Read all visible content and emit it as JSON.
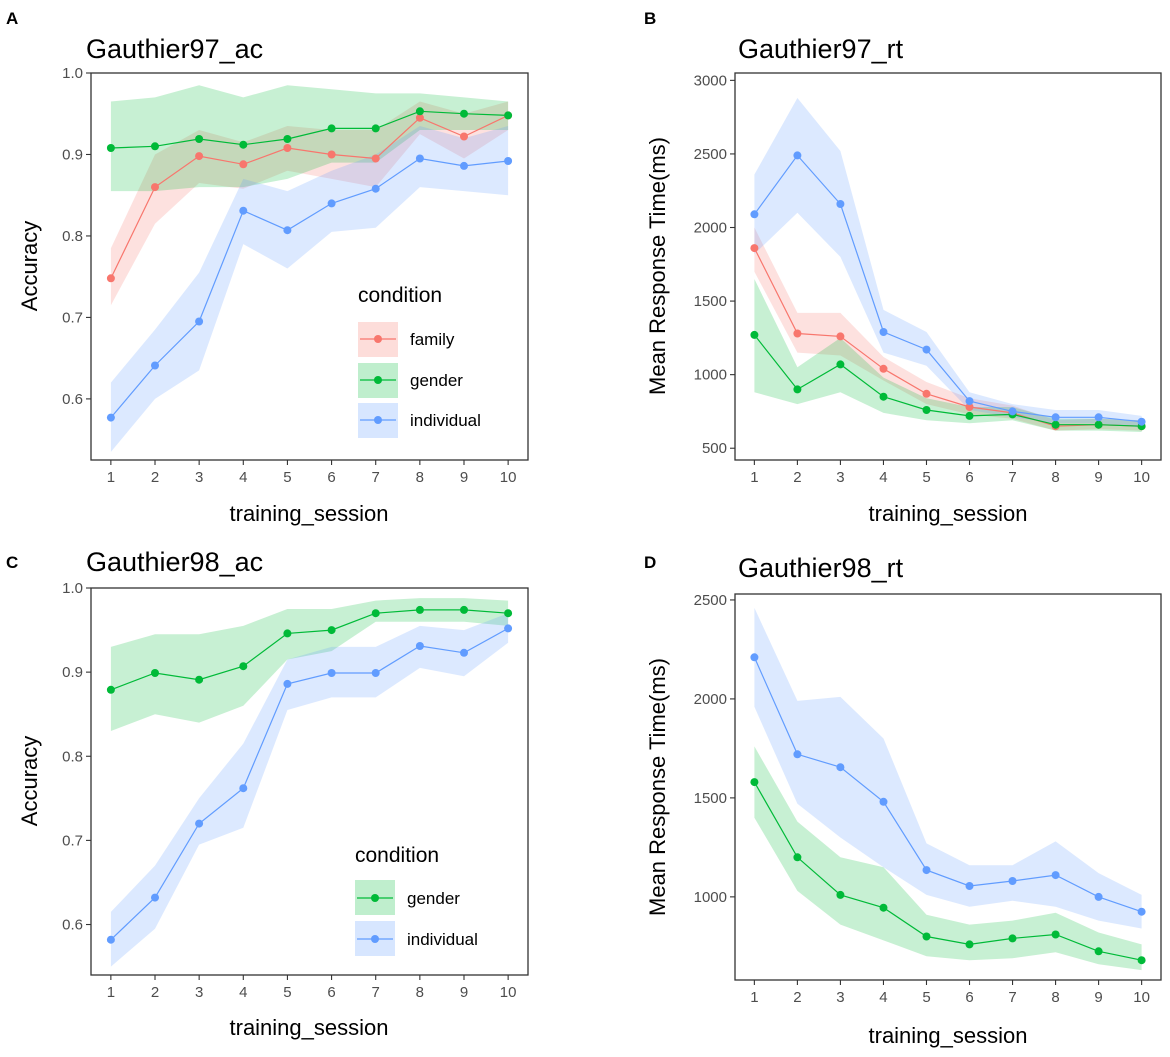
{
  "colors": {
    "family": "#F8766D",
    "gender": "#00BA38",
    "individual": "#619CFF",
    "family_band": "#F8766D",
    "gender_band": "#00BA38",
    "individual_band": "#619CFF"
  },
  "chart_data": [
    {
      "panel": "A",
      "type": "line",
      "title": "Gauthier97_ac",
      "xlabel": "training_session",
      "ylabel": "Accuracy",
      "x": [
        1,
        2,
        3,
        4,
        5,
        6,
        7,
        8,
        9,
        10
      ],
      "xticks": [
        "1",
        "2",
        "3",
        "4",
        "5",
        "6",
        "7",
        "8",
        "9",
        "10"
      ],
      "xlim": [
        0.55,
        10.45
      ],
      "ylim": [
        0.525,
        1.0
      ],
      "yticks": [
        0.6,
        0.7,
        0.8,
        0.9,
        1.0
      ],
      "ytick_labels": [
        "0.6",
        "0.7",
        "0.8",
        "0.9",
        "1.0"
      ],
      "legend": {
        "title": "condition",
        "position": "bottom-right"
      },
      "series": [
        {
          "name": "family",
          "key": "family",
          "values": [
            0.748,
            0.86,
            0.898,
            0.888,
            0.908,
            0.9,
            0.895,
            0.945,
            0.922,
            0.948
          ],
          "lower": [
            0.715,
            0.815,
            0.865,
            0.858,
            0.88,
            0.87,
            0.86,
            0.925,
            0.895,
            0.93
          ],
          "upper": [
            0.785,
            0.9,
            0.93,
            0.915,
            0.935,
            0.93,
            0.93,
            0.965,
            0.95,
            0.965
          ]
        },
        {
          "name": "gender",
          "key": "gender",
          "values": [
            0.908,
            0.91,
            0.919,
            0.912,
            0.919,
            0.932,
            0.932,
            0.953,
            0.95,
            0.948
          ],
          "lower": [
            0.855,
            0.855,
            0.86,
            0.86,
            0.87,
            0.89,
            0.89,
            0.93,
            0.93,
            0.93
          ],
          "upper": [
            0.965,
            0.97,
            0.985,
            0.97,
            0.985,
            0.98,
            0.975,
            0.975,
            0.97,
            0.965
          ]
        },
        {
          "name": "individual",
          "key": "individual",
          "values": [
            0.577,
            0.641,
            0.695,
            0.831,
            0.807,
            0.84,
            0.858,
            0.895,
            0.886,
            0.892
          ],
          "lower": [
            0.535,
            0.6,
            0.635,
            0.79,
            0.76,
            0.805,
            0.81,
            0.86,
            0.855,
            0.85
          ],
          "upper": [
            0.62,
            0.685,
            0.755,
            0.87,
            0.855,
            0.88,
            0.9,
            0.935,
            0.92,
            0.935
          ]
        }
      ]
    },
    {
      "panel": "B",
      "type": "line",
      "title": "Gauthier97_rt",
      "xlabel": "training_session",
      "ylabel": "Mean Response Time(ms)",
      "x": [
        1,
        2,
        3,
        4,
        5,
        6,
        7,
        8,
        9,
        10
      ],
      "xticks": [
        "1",
        "2",
        "3",
        "4",
        "5",
        "6",
        "7",
        "8",
        "9",
        "10"
      ],
      "xlim": [
        0.55,
        10.45
      ],
      "ylim": [
        420,
        3050
      ],
      "yticks": [
        500,
        1000,
        1500,
        2000,
        2500,
        3000
      ],
      "ytick_labels": [
        "500",
        "1000",
        "1500",
        "2000",
        "2500",
        "3000"
      ],
      "series": [
        {
          "name": "family",
          "key": "family",
          "values": [
            1860,
            1280,
            1260,
            1040,
            870,
            780,
            740,
            650,
            660,
            650
          ],
          "lower": [
            1700,
            1150,
            1130,
            960,
            800,
            730,
            700,
            620,
            630,
            620
          ],
          "upper": [
            2000,
            1420,
            1420,
            1120,
            950,
            840,
            790,
            690,
            700,
            690
          ]
        },
        {
          "name": "gender",
          "key": "gender",
          "values": [
            1270,
            900,
            1070,
            850,
            760,
            720,
            730,
            660,
            660,
            650
          ],
          "lower": [
            880,
            800,
            880,
            740,
            690,
            670,
            690,
            620,
            620,
            610
          ],
          "upper": [
            1650,
            1050,
            1250,
            980,
            840,
            780,
            780,
            700,
            700,
            690
          ]
        },
        {
          "name": "individual",
          "key": "individual",
          "values": [
            2090,
            2490,
            2160,
            1290,
            1170,
            820,
            750,
            710,
            710,
            680
          ],
          "lower": [
            1820,
            2100,
            1800,
            1150,
            1060,
            760,
            710,
            670,
            670,
            640
          ],
          "upper": [
            2360,
            2880,
            2520,
            1440,
            1290,
            880,
            800,
            760,
            760,
            720
          ]
        }
      ]
    },
    {
      "panel": "C",
      "type": "line",
      "title": "Gauthier98_ac",
      "xlabel": "training_session",
      "ylabel": "Accuracy",
      "x": [
        1,
        2,
        3,
        4,
        5,
        6,
        7,
        8,
        9,
        10
      ],
      "xticks": [
        "1",
        "2",
        "3",
        "4",
        "5",
        "6",
        "7",
        "8",
        "9",
        "10"
      ],
      "xlim": [
        0.55,
        10.45
      ],
      "ylim": [
        0.54,
        1.0
      ],
      "yticks": [
        0.6,
        0.7,
        0.8,
        0.9,
        1.0
      ],
      "ytick_labels": [
        "0.6",
        "0.7",
        "0.8",
        "0.9",
        "1.0"
      ],
      "legend": {
        "title": "condition",
        "position": "bottom-right"
      },
      "series": [
        {
          "name": "gender",
          "key": "gender",
          "values": [
            0.879,
            0.899,
            0.891,
            0.907,
            0.946,
            0.95,
            0.97,
            0.974,
            0.974,
            0.97
          ],
          "lower": [
            0.83,
            0.85,
            0.84,
            0.86,
            0.915,
            0.925,
            0.96,
            0.96,
            0.96,
            0.955
          ],
          "upper": [
            0.93,
            0.945,
            0.945,
            0.955,
            0.975,
            0.975,
            0.985,
            0.988,
            0.988,
            0.985
          ]
        },
        {
          "name": "individual",
          "key": "individual",
          "values": [
            0.582,
            0.632,
            0.72,
            0.762,
            0.886,
            0.899,
            0.899,
            0.931,
            0.923,
            0.952
          ],
          "lower": [
            0.55,
            0.595,
            0.695,
            0.715,
            0.855,
            0.87,
            0.87,
            0.905,
            0.895,
            0.935
          ],
          "upper": [
            0.615,
            0.67,
            0.75,
            0.815,
            0.915,
            0.93,
            0.93,
            0.955,
            0.95,
            0.97
          ]
        }
      ]
    },
    {
      "panel": "D",
      "type": "line",
      "title": "Gauthier98_rt",
      "xlabel": "training_session",
      "ylabel": "Mean Response Time(ms)",
      "x": [
        1,
        2,
        3,
        4,
        5,
        6,
        7,
        8,
        9,
        10
      ],
      "xticks": [
        "1",
        "2",
        "3",
        "4",
        "5",
        "6",
        "7",
        "8",
        "9",
        "10"
      ],
      "xlim": [
        0.55,
        10.45
      ],
      "ylim": [
        580,
        2530
      ],
      "yticks": [
        1000,
        1500,
        2000,
        2500
      ],
      "ytick_labels": [
        "1000",
        "1500",
        "2000",
        "2500"
      ],
      "series": [
        {
          "name": "gender",
          "key": "gender",
          "values": [
            1580,
            1200,
            1010,
            945,
            800,
            760,
            790,
            810,
            725,
            680
          ],
          "lower": [
            1400,
            1030,
            860,
            780,
            700,
            680,
            690,
            720,
            660,
            630
          ],
          "upper": [
            1760,
            1380,
            1200,
            1150,
            910,
            860,
            880,
            920,
            820,
            760
          ]
        },
        {
          "name": "individual",
          "key": "individual",
          "values": [
            2210,
            1720,
            1655,
            1480,
            1135,
            1055,
            1080,
            1110,
            1000,
            925
          ],
          "lower": [
            1960,
            1470,
            1300,
            1150,
            1010,
            950,
            980,
            950,
            880,
            840
          ],
          "upper": [
            2460,
            1990,
            2010,
            1800,
            1270,
            1160,
            1160,
            1280,
            1120,
            1010
          ]
        }
      ]
    }
  ]
}
